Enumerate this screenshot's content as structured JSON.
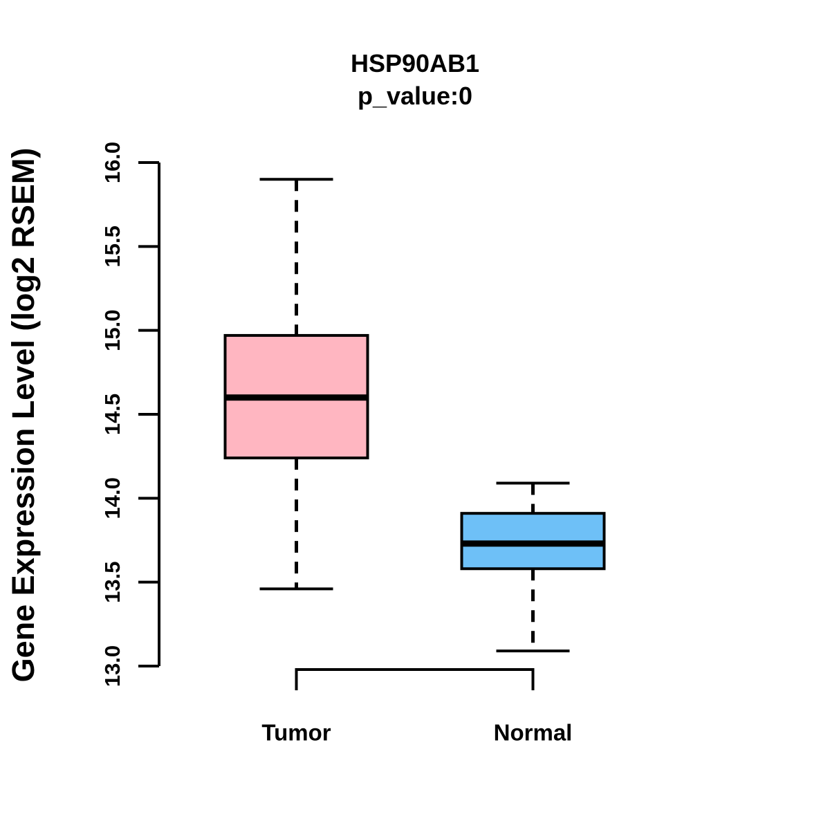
{
  "chart_data": {
    "type": "boxplot",
    "title": "HSP90AB1",
    "subtitle": "p_value:0",
    "ylabel": "Gene Expression Level (log2 RSEM)",
    "ylim": [
      13.0,
      16.0
    ],
    "yticks": [
      {
        "value": 13.0,
        "label": "13.0"
      },
      {
        "value": 13.5,
        "label": "13.5"
      },
      {
        "value": 14.0,
        "label": "14.0"
      },
      {
        "value": 14.5,
        "label": "14.5"
      },
      {
        "value": 15.0,
        "label": "15.0"
      },
      {
        "value": 15.5,
        "label": "15.5"
      },
      {
        "value": 16.0,
        "label": "16.0"
      }
    ],
    "categories": [
      "Tumor",
      "Normal"
    ],
    "series": [
      {
        "name": "Tumor",
        "box_color": "#FFB6C1",
        "whisker_low": 13.46,
        "q1": 14.24,
        "median": 14.6,
        "q3": 14.97,
        "whisker_high": 15.9
      },
      {
        "name": "Normal",
        "box_color": "#6EC0F7",
        "whisker_low": 13.09,
        "q1": 13.58,
        "median": 13.73,
        "q3": 13.91,
        "whisker_high": 14.09
      }
    ],
    "stroke_color": "#000000",
    "background": "#FFFFFF",
    "grid": "off",
    "legend": "none"
  }
}
